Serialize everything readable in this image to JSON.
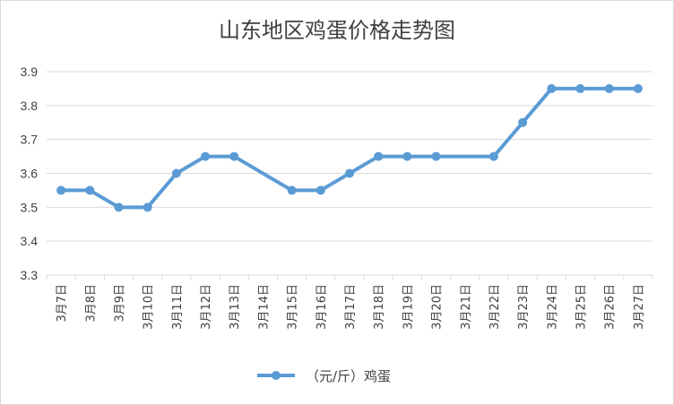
{
  "chart_data": {
    "type": "line",
    "title": "山东地区鸡蛋价格走势图",
    "xlabel": "",
    "ylabel": "",
    "categories": [
      "3月7日",
      "3月8日",
      "3月9日",
      "3月10日",
      "3月11日",
      "3月12日",
      "3月13日",
      "3月14日",
      "3月15日",
      "3月16日",
      "3月17日",
      "3月18日",
      "3月19日",
      "3月20日",
      "3月21日",
      "3月22日",
      "3月23日",
      "3月24日",
      "3月25日",
      "3月26日",
      "3月27日"
    ],
    "series": [
      {
        "name": "（元/斤）鸡蛋",
        "values": [
          3.55,
          3.55,
          3.5,
          3.5,
          3.6,
          3.65,
          3.65,
          null,
          3.55,
          3.55,
          3.6,
          3.65,
          3.65,
          3.65,
          null,
          3.65,
          3.75,
          3.85,
          3.85,
          3.85,
          3.85
        ],
        "color": "#5b9bd5"
      }
    ],
    "ylim": [
      3.3,
      3.9
    ],
    "yticks": [
      "3.3",
      "3.4",
      "3.5",
      "3.6",
      "3.7",
      "3.8",
      "3.9"
    ],
    "grid": true,
    "legend_position": "bottom"
  }
}
